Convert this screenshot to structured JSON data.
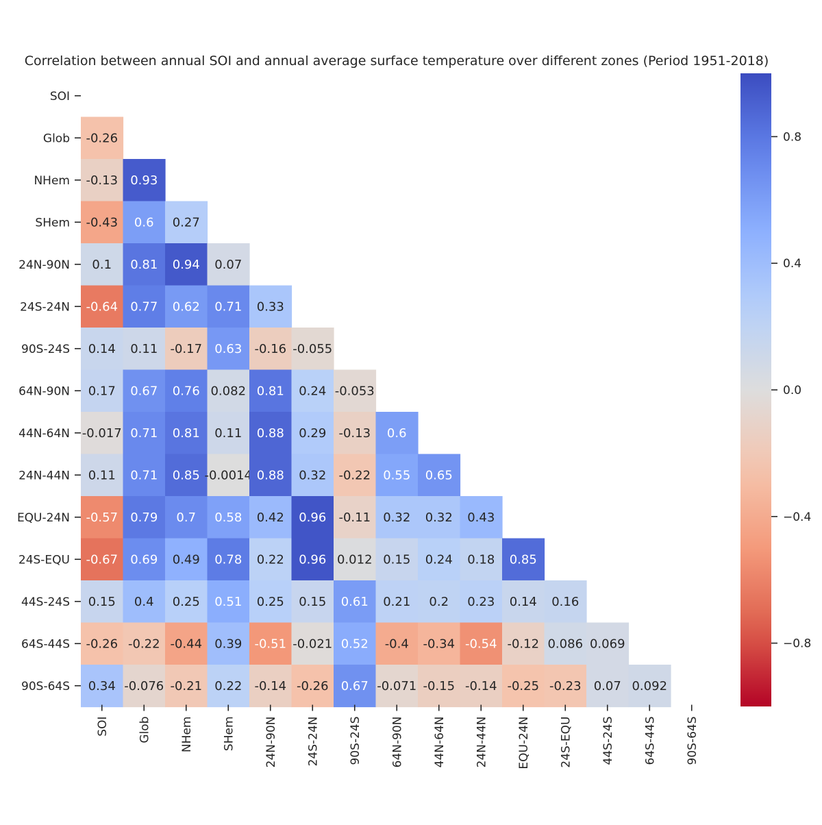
{
  "chart_data": {
    "type": "heatmap",
    "title": "Correlation between annual SOI and annual average surface temperature over different zones (Period 1951-2018)",
    "labels": [
      "SOI",
      "Glob",
      "NHem",
      "SHem",
      "24N-90N",
      "24S-24N",
      "90S-24S",
      "64N-90N",
      "44N-64N",
      "24N-44N",
      "EQU-24N",
      "24S-EQU",
      "44S-24S",
      "64S-44S",
      "90S-64S"
    ],
    "values": [
      [],
      [
        "-0.26"
      ],
      [
        "-0.13",
        "0.93"
      ],
      [
        "-0.43",
        "0.6",
        "0.27"
      ],
      [
        "0.1",
        "0.81",
        "0.94",
        "0.07"
      ],
      [
        "-0.64",
        "0.77",
        "0.62",
        "0.71",
        "0.33"
      ],
      [
        "0.14",
        "0.11",
        "-0.17",
        "0.63",
        "-0.16",
        "-0.055"
      ],
      [
        "0.17",
        "0.67",
        "0.76",
        "0.082",
        "0.81",
        "0.24",
        "-0.053"
      ],
      [
        "-0.017",
        "0.71",
        "0.81",
        "0.11",
        "0.88",
        "0.29",
        "-0.13",
        "0.6"
      ],
      [
        "0.11",
        "0.71",
        "0.85",
        "-0.0014",
        "0.88",
        "0.32",
        "-0.22",
        "0.55",
        "0.65"
      ],
      [
        "-0.57",
        "0.79",
        "0.7",
        "0.58",
        "0.42",
        "0.96",
        "-0.11",
        "0.32",
        "0.32",
        "0.43"
      ],
      [
        "-0.67",
        "0.69",
        "0.49",
        "0.78",
        "0.22",
        "0.96",
        "0.012",
        "0.15",
        "0.24",
        "0.18",
        "0.85"
      ],
      [
        "0.15",
        "0.4",
        "0.25",
        "0.51",
        "0.25",
        "0.15",
        "0.61",
        "0.21",
        "0.2",
        "0.23",
        "0.14",
        "0.16"
      ],
      [
        "-0.26",
        "-0.22",
        "-0.44",
        "0.39",
        "-0.51",
        "-0.021",
        "0.52",
        "-0.4",
        "-0.34",
        "-0.54",
        "-0.12",
        "0.086",
        "0.069"
      ],
      [
        "0.34",
        "-0.076",
        "-0.21",
        "0.22",
        "-0.14",
        "-0.26",
        "0.67",
        "-0.071",
        "-0.15",
        "-0.14",
        "-0.25",
        "-0.23",
        "0.07",
        "0.092"
      ]
    ],
    "colormap": "coolwarm",
    "vmin": -1,
    "vmax": 1,
    "colorbar_ticks": [
      "0.8",
      "0.4",
      "0.0",
      "−0.4",
      "−0.8"
    ],
    "masked": "upper triangle including diagonal"
  }
}
